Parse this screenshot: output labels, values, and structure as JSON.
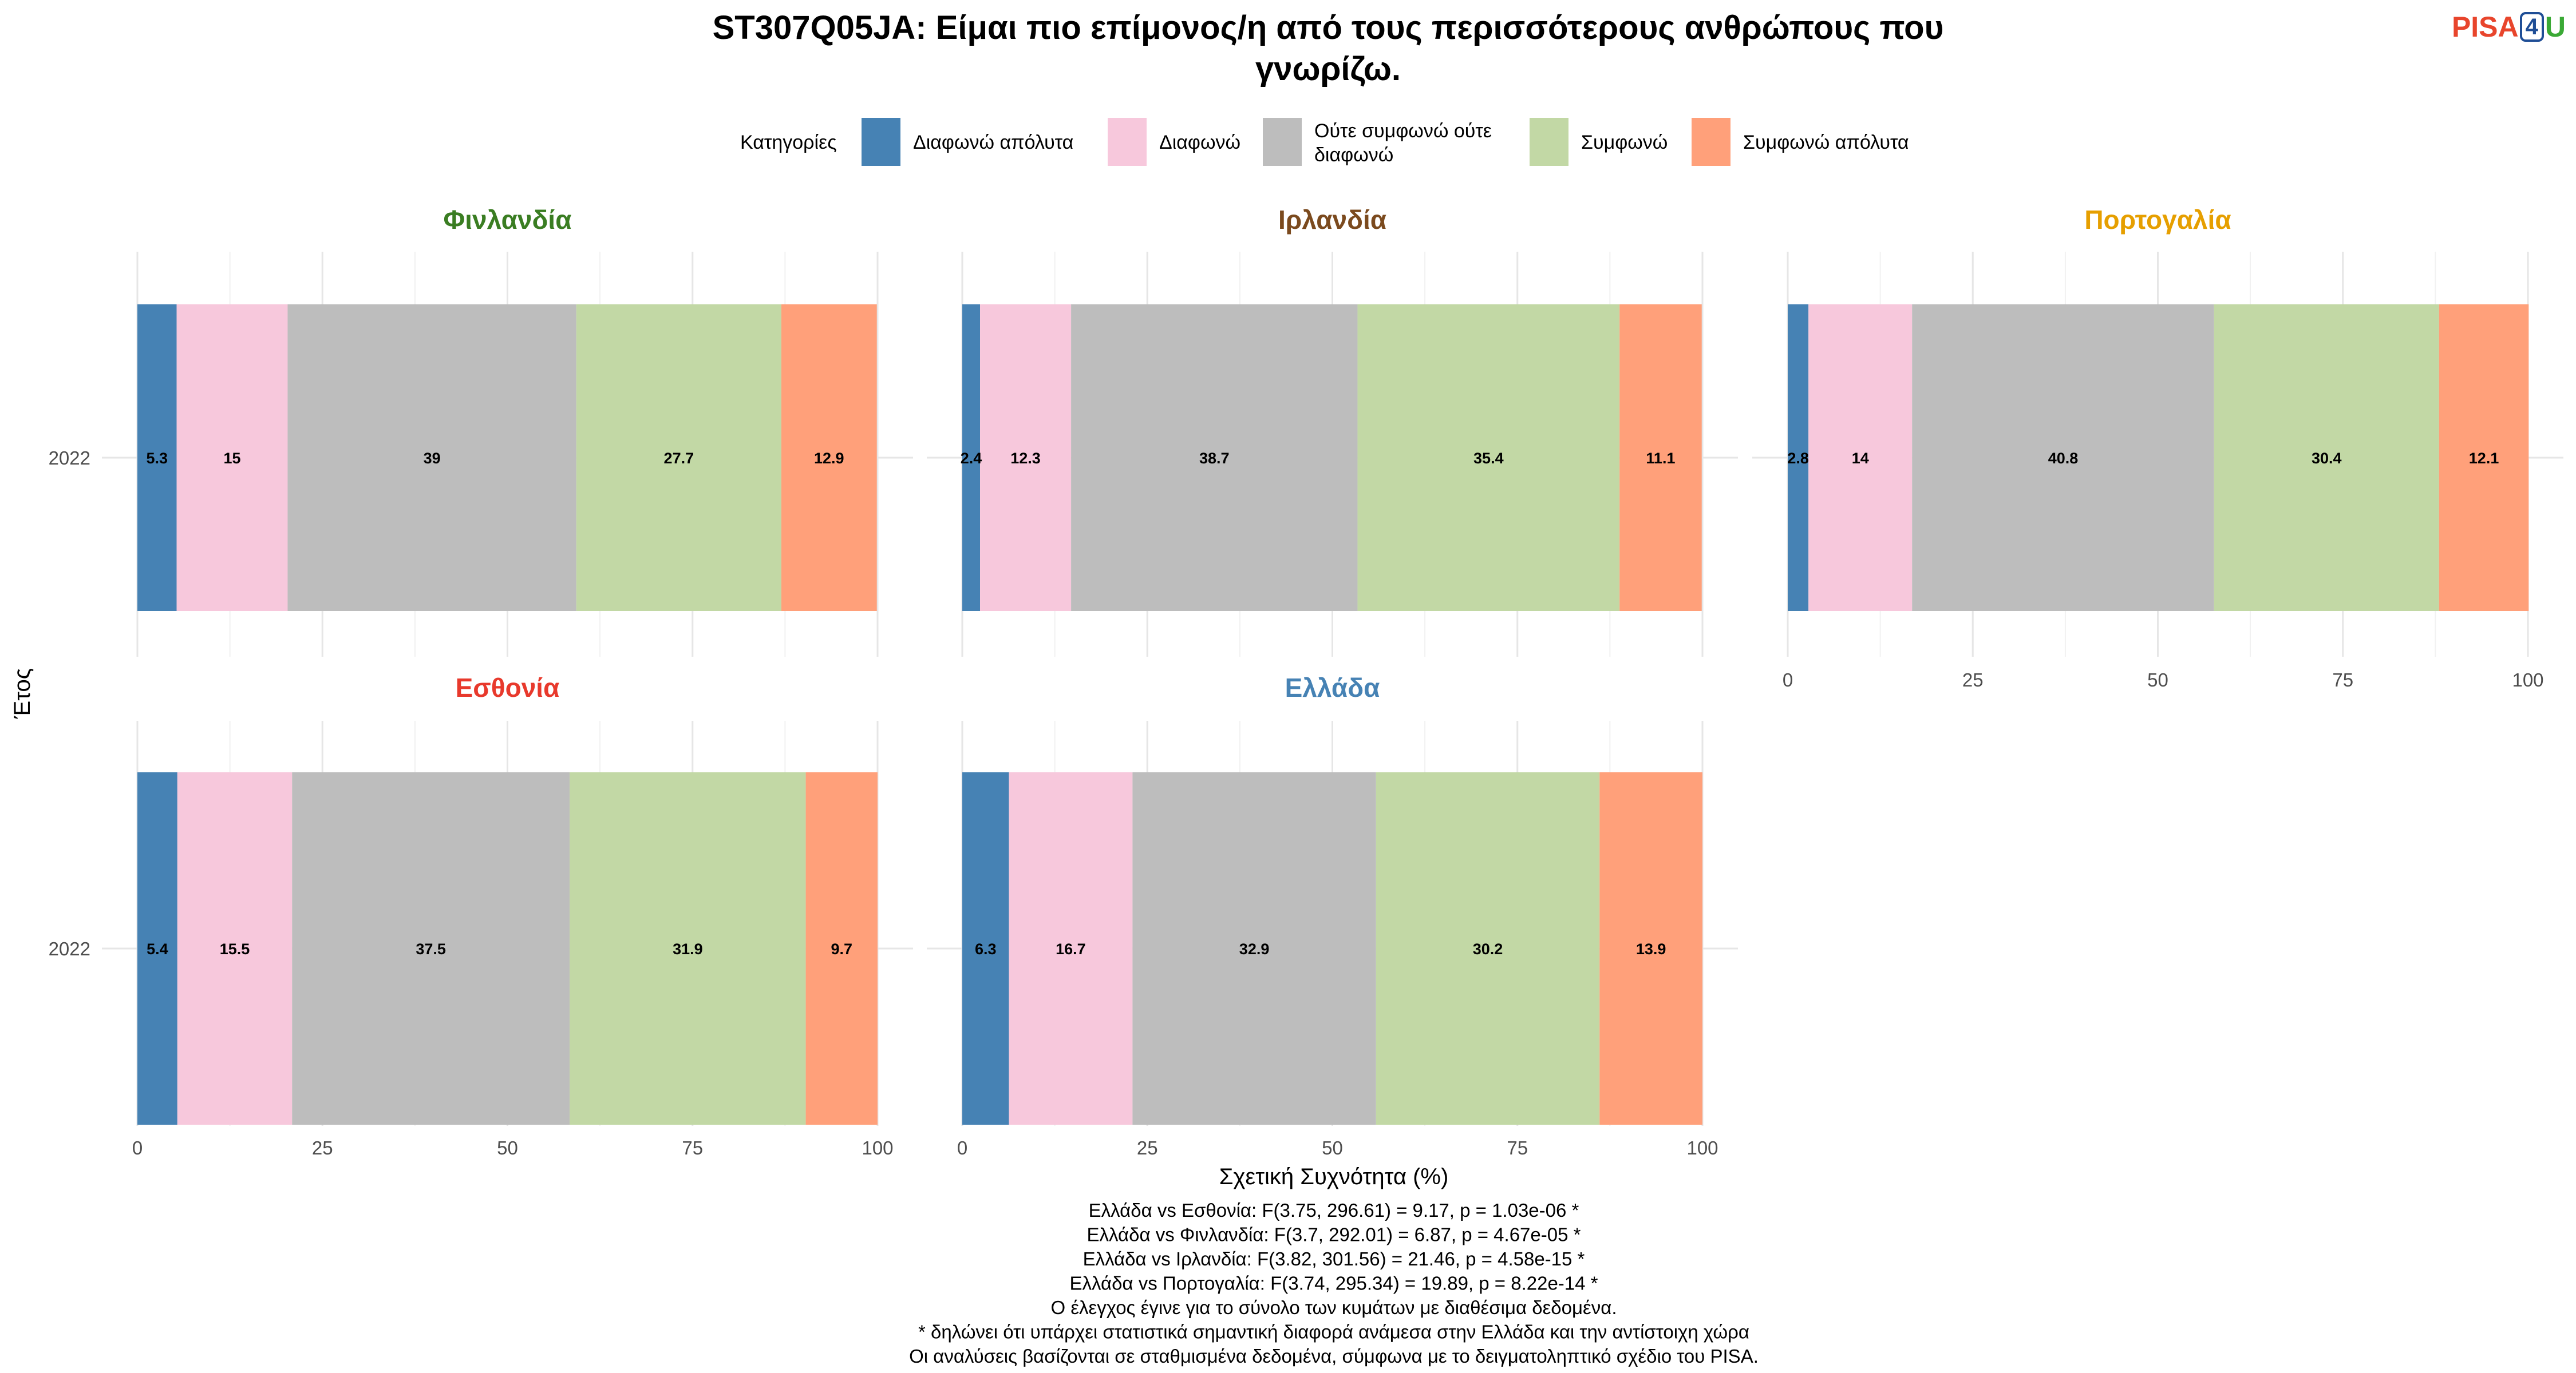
{
  "title_line1": "ST307Q05JA: Είμαι πιο επίμονος/η από τους περισσότερους ανθρώπους που",
  "title_line2": "γνωρίζω.",
  "logo": {
    "part1": "PISA",
    "part2": "4",
    "part3": "U"
  },
  "legend_title": "Κατηγορίες",
  "categories": [
    {
      "label": "Διαφωνώ απόλυτα",
      "color": "#4682b4"
    },
    {
      "label": "Διαφωνώ",
      "color": "#f7c8dc"
    },
    {
      "label": "Ούτε συμφωνώ ούτε διαφωνώ",
      "color": "#bdbdbd"
    },
    {
      "label": "Συμφωνώ",
      "color": "#c2d8a5"
    },
    {
      "label": "Συμφωνώ απόλυτα",
      "color": "#ffa07a"
    }
  ],
  "ylabel": "Έτος",
  "xlabel": "Σχετική Συχνότητα (%)",
  "xticks": [
    "0",
    "25",
    "50",
    "75",
    "100"
  ],
  "footnotes": [
    "Ελλάδα vs Εσθονία: F(3.75, 296.61) = 9.17, p = 1.03e-06 *",
    "Ελλάδα vs Φινλανδία: F(3.7, 292.01) = 6.87, p = 4.67e-05 *",
    "Ελλάδα vs Ιρλανδία: F(3.82, 301.56) = 21.46, p = 4.58e-15 *",
    "Ελλάδα vs Πορτογαλία: F(3.74, 295.34) = 19.89, p = 8.22e-14 *",
    "Ο έλεγχος έγινε για το σύνολο των κυμάτων με διαθέσιμα δεδομένα.",
    "* δηλώνει ότι υπάρχει στατιστικά σημαντική διαφορά ανάμεσα στην Ελλάδα και την αντίστοιχη χώρα",
    "Οι αναλύσεις βασίζονται σε σταθμισμένα δεδομένα, σύμφωνα με το δειγματοληπτικό σχέδιο του PISA."
  ],
  "chart_data": {
    "type": "bar",
    "orientation": "horizontal-stacked",
    "xlim": [
      0,
      100
    ],
    "panels": [
      {
        "country": "Φινλανδία",
        "title_color": "#3a7d22",
        "year": "2022",
        "values": [
          5.3,
          15,
          39,
          27.7,
          12.9
        ],
        "labels": [
          "5.3",
          "15",
          "39",
          "27.7",
          "12.9"
        ]
      },
      {
        "country": "Ιρλανδία",
        "title_color": "#7b4a1e",
        "year": "2022",
        "values": [
          2.4,
          12.3,
          38.7,
          35.4,
          11.1
        ],
        "labels": [
          "2.4",
          "12.3",
          "38.7",
          "35.4",
          "11.1"
        ]
      },
      {
        "country": "Πορτογαλία",
        "title_color": "#e69f00",
        "year": "2022",
        "values": [
          2.8,
          14,
          40.8,
          30.4,
          12.1
        ],
        "labels": [
          "2.8",
          "14",
          "40.8",
          "30.4",
          "12.1"
        ]
      },
      {
        "country": "Εσθονία",
        "title_color": "#e8392c",
        "year": "2022",
        "values": [
          5.4,
          15.5,
          37.5,
          31.9,
          9.7
        ],
        "labels": [
          "5.4",
          "15.5",
          "37.5",
          "31.9",
          "9.7"
        ]
      },
      {
        "country": "Ελλάδα",
        "title_color": "#4682b4",
        "year": "2022",
        "values": [
          6.3,
          16.7,
          32.9,
          30.2,
          13.9
        ],
        "labels": [
          "6.3",
          "16.7",
          "32.9",
          "30.2",
          "13.9"
        ]
      }
    ]
  }
}
